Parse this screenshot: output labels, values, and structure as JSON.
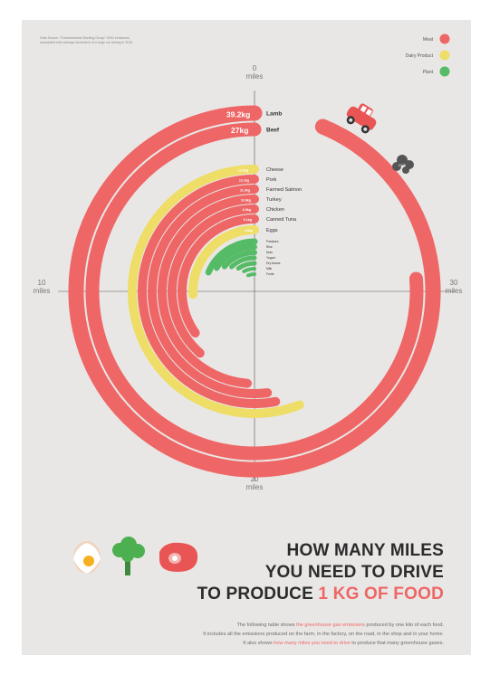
{
  "source_note": "Data Source: \"Environmental Working Group\" GHG emissions associated with average kilometers of a large car driving in 2016",
  "legend": [
    {
      "label": "Meat",
      "color": "#ee6666"
    },
    {
      "label": "Dairy Product",
      "color": "#eedd66"
    },
    {
      "label": "Plant",
      "color": "#55bb66"
    }
  ],
  "axes": {
    "top": {
      "value": "0",
      "unit": "miles"
    },
    "right": {
      "value": "30",
      "unit": "miles"
    },
    "bottom": {
      "value": "20",
      "unit": "miles"
    },
    "left": {
      "value": "10",
      "unit": "miles"
    }
  },
  "title": {
    "line1": "HOW MANY MILES",
    "line2": "YOU NEED TO DRIVE",
    "line3_prefix": "TO PRODUCE ",
    "line3_highlight": "1 KG OF FOOD"
  },
  "description": {
    "line1_prefix": "The following table shows ",
    "line1_highlight": "the greenhouse gas emissions",
    "line1_suffix": " produced by one kilo of each food.",
    "line2": "It includes all the emissions produced on the farm, in the factory, on the road, in the shop and in your home.",
    "line3_prefix": "It also shows ",
    "line3_highlight": "how many miles you need to drive",
    "line3_suffix": " to produce that many greenhouse gases."
  },
  "icons": [
    "egg-icon",
    "broccoli-icon",
    "steak-icon",
    "car-icon"
  ],
  "chart_data": {
    "type": "radial-bar",
    "unit": "miles",
    "axis_max": 40,
    "items": [
      {
        "name": "Lamb",
        "label": "39.2kg",
        "category": "Meat",
        "miles": 37.5
      },
      {
        "name": "Beef",
        "label": "27kg",
        "category": "Meat",
        "miles": 30.5
      },
      {
        "name": "Cheese",
        "label": "13.5kg",
        "category": "Dairy Product",
        "miles": 22.4
      },
      {
        "name": "Pork",
        "label": "12.1kg",
        "category": "Meat",
        "miles": 21.2
      },
      {
        "name": "Farmed Salmon",
        "label": "11.9kg",
        "category": "Meat",
        "miles": 20.8
      },
      {
        "name": "Turkey",
        "label": "10.9kg",
        "category": "Meat",
        "miles": 19.5
      },
      {
        "name": "Chicken",
        "label": "6.9kg",
        "category": "Meat",
        "miles": 15.4
      },
      {
        "name": "Canned Tuna",
        "label": "6.1kg",
        "category": "Meat",
        "miles": 13.9
      },
      {
        "name": "Eggs",
        "label": "4.8kg",
        "category": "Dairy Product",
        "miles": 10.3
      },
      {
        "name": "Potatoes",
        "label": "",
        "category": "Plant",
        "miles": 7.5
      },
      {
        "name": "Rice",
        "label": "",
        "category": "Plant",
        "miles": 6.5
      },
      {
        "name": "Nuts",
        "label": "",
        "category": "Plant",
        "miles": 5.6
      },
      {
        "name": "Yogurt",
        "label": "",
        "category": "Plant",
        "miles": 4.8
      },
      {
        "name": "Dry beans",
        "label": "",
        "category": "Plant",
        "miles": 3.9
      },
      {
        "name": "Milk",
        "label": "",
        "category": "Plant",
        "miles": 3.1
      },
      {
        "name": "Fruits",
        "label": "",
        "category": "Plant",
        "miles": 2.4
      }
    ]
  }
}
